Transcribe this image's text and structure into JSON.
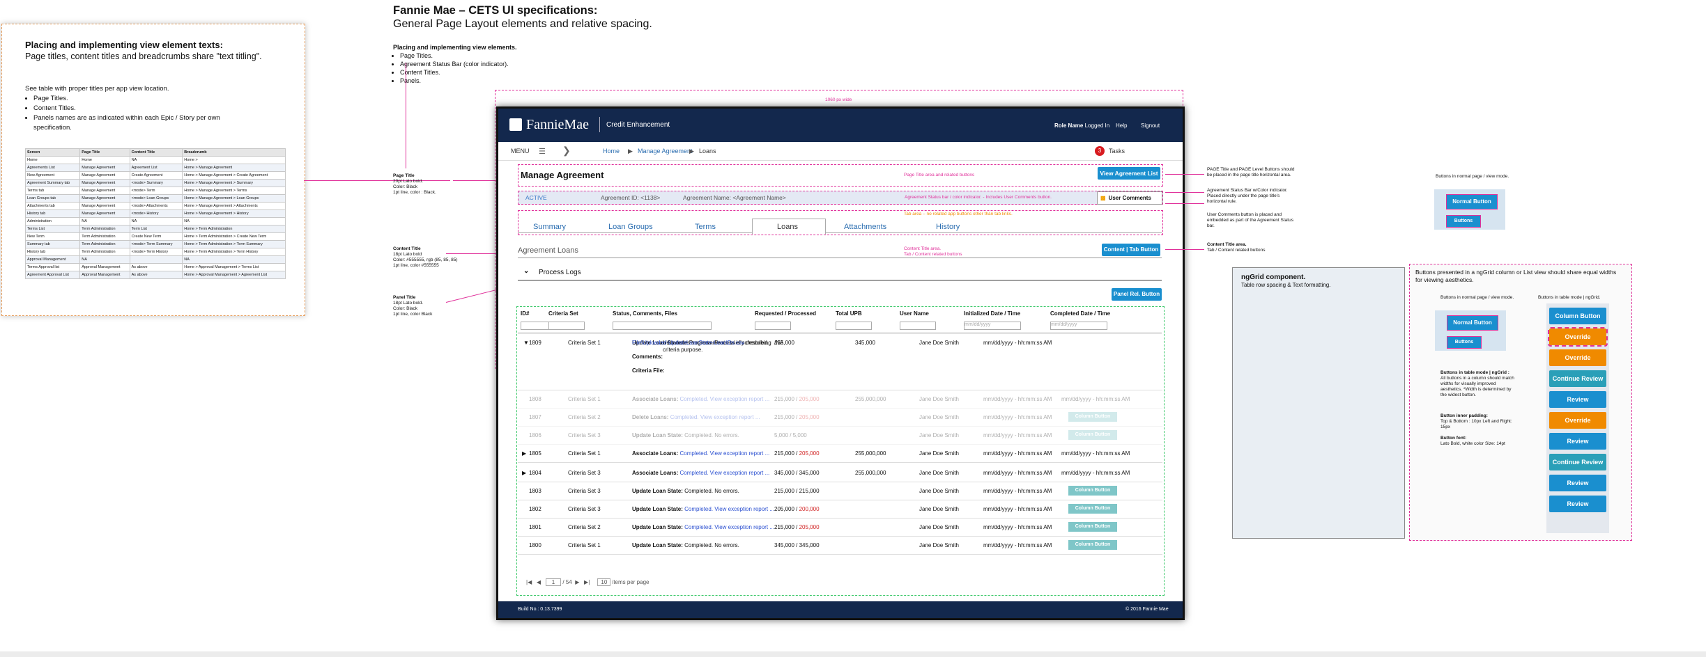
{
  "note": {
    "heading": "Placing and implementing view element texts:",
    "subheading": "Page titles, content titles and breadcrumbs share \"text titling\".",
    "intro": "See table with proper titles per app view location.",
    "bullets": [
      "Page Titles.",
      "Content Titles.",
      "Panels names are as indicated within each Epic / Story per own specification."
    ],
    "table_headers": [
      "Screen",
      "Page Title",
      "Content Title",
      "Breadcrumb"
    ],
    "table_rows": [
      [
        "Home",
        "Home",
        "NA",
        "Home >"
      ],
      [
        "Agreements List",
        "Manage Agreement",
        "Agreement List",
        "Home > Manage Agreement"
      ],
      [
        "New Agreement",
        "Manage Agreement",
        "Create Agreement",
        "Home > Manage Agreement > Create Agreement"
      ],
      [
        "Agreement Summary tab",
        "Manage Agreement",
        "<mode> Summary",
        "Home > Manage Agreement > Summary"
      ],
      [
        "Terms tab",
        "Manage Agreement",
        "<mode> Term",
        "Home > Manage Agreement > Terms"
      ],
      [
        "Loan Groups tab",
        "Manage Agreement",
        "<mode> Loan Groups",
        "Home > Manage Agreement > Loan Groups"
      ],
      [
        "Attachments tab",
        "Manage Agreement",
        "<mode> Attachments",
        "Home > Manage Agreement > Attachments"
      ],
      [
        "History tab",
        "Manage Agreement",
        "<mode> History",
        "Home > Manage Agreement > History"
      ],
      [
        "Administration",
        "NA",
        "NA",
        "NA"
      ],
      [
        "Terms List",
        "Term Administration",
        "Term List",
        "Home > Term Administration"
      ],
      [
        "New Term",
        "Term Administration",
        "Create New Term",
        "Home > Term Administration > Create New Term"
      ],
      [
        "Summary tab",
        "Term Administration",
        "<mode> Term Summary",
        "Home > Term Administration > Term Summary"
      ],
      [
        "History tab",
        "Term Administration",
        "<mode> Term History",
        "Home > Term Administration > Term History"
      ],
      [
        "Approval Management",
        "NA",
        "",
        "NA"
      ],
      [
        "Terms Approval list",
        "Approval Management",
        "As above",
        "Home > Approval Management > Terms List"
      ],
      [
        "Agreement Approval List",
        "Approval Management",
        "As above",
        "Home > Approval Management > Agreement List"
      ]
    ]
  },
  "header": {
    "title": "Fannie Mae – CETS UI specifications:",
    "subtitle": "General Page Layout elements and relative spacing.",
    "lead_title": "Placing and implementing view elements.",
    "lead_bullets": [
      "Page Titles.",
      "Agreement Status Bar (color indicator).",
      "Content Titles.",
      "Panels."
    ]
  },
  "annotations": {
    "width": "1060 px wide",
    "page_title": [
      "Page Title",
      "20pt Lato bold.",
      "Color: Black",
      "1pt line, color : Black."
    ],
    "content_title": [
      "Content Title",
      "18pt Lato bold",
      "Color: #555555, rgb (85, 85, 85)",
      "1pt line, color #555555"
    ],
    "panel_title": [
      "Panel Title",
      "18pt Lato bold.",
      "Color: Black",
      "1pt line, color Black"
    ],
    "page_title_area": "Page Title area and related buttons",
    "status_bar_area": "Agreement Status bar / color indicator. - Includes User Comments button.",
    "tab_area": "Tab area – no related app buttons other than tab links.",
    "content_title_area": [
      "Content Title area.",
      "Tab / Content related buttons"
    ],
    "right_page_level": "PAGE Title and PAGE Level Buttons should be placed in the page title horizontal area.",
    "right_status": "Agreement Status Bar w/Color indicator. Placed directly under the page title's horizontal rule.",
    "right_comments": "User Comments button is placed and embedded as part of the Agreement Status bar.",
    "right_content": [
      "Content Title area.",
      "Tab / Content related buttons"
    ]
  },
  "app": {
    "brand": "FannieMae",
    "product": "Credit Enhancement",
    "role_label": "Role Name",
    "logged_in": "Logged In",
    "help": "Help",
    "signout": "Signout",
    "menu": "MENU",
    "breadcrumb": [
      "Home",
      "Manage Agreement",
      "Loans"
    ],
    "tasks_count": "3",
    "tasks_label": "Tasks",
    "page_title": "Manage Agreement",
    "view_list_btn": "View Agreement List",
    "status": "ACTIVE",
    "agreement_id": "Agreement ID: <1138>",
    "agreement_name": "Agreement  Name: <Agreement Name>",
    "user_comments": "User Comments",
    "tabs": [
      "Summary",
      "Loan Groups",
      "Terms",
      "Loans",
      "Attachments",
      "History"
    ],
    "content_title": "Agreement Loans",
    "content_btn": "Content | Tab Button",
    "panel_title": "Process Logs",
    "panel_btn": "Panel Rel. Button",
    "columns": [
      "ID#",
      "Criteria Set",
      "Status, Comments, Files",
      "Requested  /  Processed",
      "Total UPB",
      "User Name",
      "Initialized Date / Time",
      "Completed Date / Time"
    ],
    "date_placeholder": "mm/dd/yyyy",
    "expanded": {
      "id": "1809",
      "criteria": "Criteria Set 1",
      "status_label": "Update Loan State:",
      "status_text": " In Progress. Process is scheduled.",
      "comments_label": "Comments:",
      "comments_text": " User notes and comments briefly describing criteria purpose.",
      "file_label": "Criteria File:",
      "file_name": "File\\Uploaded-UpdateLoanState-LoanIDs.csv",
      "requested": "155,000",
      "processed": "NA",
      "upb": "345,000",
      "user": "Jane Doe Smith",
      "init": "mm/dd/yyyy - hh:mm:ss AM"
    },
    "rows": [
      {
        "id": "1808",
        "crit": "Criteria Set 1",
        "label": "Associate Loans:",
        "text": " Completed. View exception report ...",
        "req": "215,000",
        "proc": "205,000",
        "upb": "255,000,000",
        "user": "Jane Doe Smith",
        "init": "mm/dd/yyyy - hh:mm:ss AM",
        "done": "mm/dd/yyyy - hh:mm:ss AM"
      },
      {
        "id": "1807",
        "crit": "Criteria Set 2",
        "label": "Delete Loans:",
        "text": " Completed. View exception report ...",
        "req": "215,000",
        "proc": "205,000",
        "upb": "",
        "user": "Jane Doe Smith",
        "init": "mm/dd/yyyy - hh:mm:ss AM",
        "done": "Column Button"
      },
      {
        "id": "1806",
        "crit": "Criteria Set 3",
        "label": "Update Loan State:",
        "text": " Completed. No errors.",
        "req": "5,000",
        "proc": "5,000",
        "upb": "",
        "user": "Jane Doe Smith",
        "init": "mm/dd/yyyy - hh:mm:ss AM",
        "done": "Column Button"
      },
      {
        "id": "1805",
        "crit": "Criteria Set 1",
        "label": "Associate Loans:",
        "text": " Completed. View exception report ...",
        "req": "215,000",
        "proc": "205,000",
        "upb": "255,000,000",
        "user": "Jane Doe Smith",
        "init": "mm/dd/yyyy - hh:mm:ss AM",
        "done": "mm/dd/yyyy - hh:mm:ss AM"
      },
      {
        "id": "1804",
        "crit": "Criteria Set 3",
        "label": "Associate Loans:",
        "text": " Completed. View exception report ...",
        "req": "345,000",
        "proc": "345,000",
        "upb": "255,000,000",
        "user": "Jane Doe Smith",
        "init": "mm/dd/yyyy - hh:mm:ss AM",
        "done": "mm/dd/yyyy - hh:mm:ss AM"
      },
      {
        "id": "1803",
        "crit": "Criteria Set 3",
        "label": "Update Loan State:",
        "text": " Completed. No errors.",
        "req": "215,000",
        "proc": "215,000",
        "upb": "",
        "user": "Jane Doe Smith",
        "init": "mm/dd/yyyy - hh:mm:ss AM",
        "done": "Column Button"
      },
      {
        "id": "1802",
        "crit": "Criteria Set 3",
        "label": "Update Loan State:",
        "text": " Completed. View exception report ...",
        "req": "205,000",
        "proc": "200,000",
        "upb": "",
        "user": "Jane Doe Smith",
        "init": "mm/dd/yyyy - hh:mm:ss AM",
        "done": "Column Button"
      },
      {
        "id": "1801",
        "crit": "Criteria Set 2",
        "label": "Update Loan State:",
        "text": " Completed. View exception report ...",
        "req": "215,000",
        "proc": "205,000",
        "upb": "",
        "user": "Jane Doe Smith",
        "init": "mm/dd/yyyy - hh:mm:ss AM",
        "done": "Column Button"
      },
      {
        "id": "1800",
        "crit": "Criteria Set 1",
        "label": "Update Loan State:",
        "text": " Completed. No errors.",
        "req": "345,000",
        "proc": "345,000",
        "upb": "",
        "user": "Jane Doe Smith",
        "init": "mm/dd/yyyy - hh:mm:ss AM",
        "done": "Column Button"
      }
    ],
    "pager_page": "1",
    "pager_of": "/ 54",
    "pager_size": "10",
    "pager_label": "items per page",
    "build": "Build No.: 0.13.7399",
    "copyright": "© 2016 Fannie Mae"
  },
  "ngrid": {
    "title": "ngGrid component.",
    "subtitle": "Table row spacing & Text formatting."
  },
  "buttons_panel": {
    "intro": "Buttons presented in a ngGrid column or List view should share equal widths for viewing aesthetics.",
    "normal_label": "Buttons in normal page / view  mode.",
    "table_label": "Buttons in table mode | ngGrid.",
    "normal_button": "Normal Button",
    "small_button": "Buttons",
    "table_mode_title": "Buttons in table mode  | ngGrid :",
    "table_mode_text": "All buttons in a column should match widths for visually improved aesthetics. *Width is determined by the widest button.",
    "padding_title": "Button inner padding:",
    "padding_text": "Top & Bottom : 10px Left and Right: 15px",
    "font_title": "Button font:",
    "font_text": "Lato Bold, white color Size: 14pt",
    "column_buttons": [
      "Column Button",
      "Override",
      "Override",
      "Continue Review",
      "Review",
      "Override",
      "Review",
      "Continue Review",
      "Review",
      "Review"
    ],
    "top_label": "Buttons in normal page / view  mode."
  },
  "colors": {
    "navy": "#13284d",
    "accent": "#1a8fcf",
    "annotation": "#e0309a",
    "orange": "#f08a00",
    "teal": "#2aa8b8"
  }
}
